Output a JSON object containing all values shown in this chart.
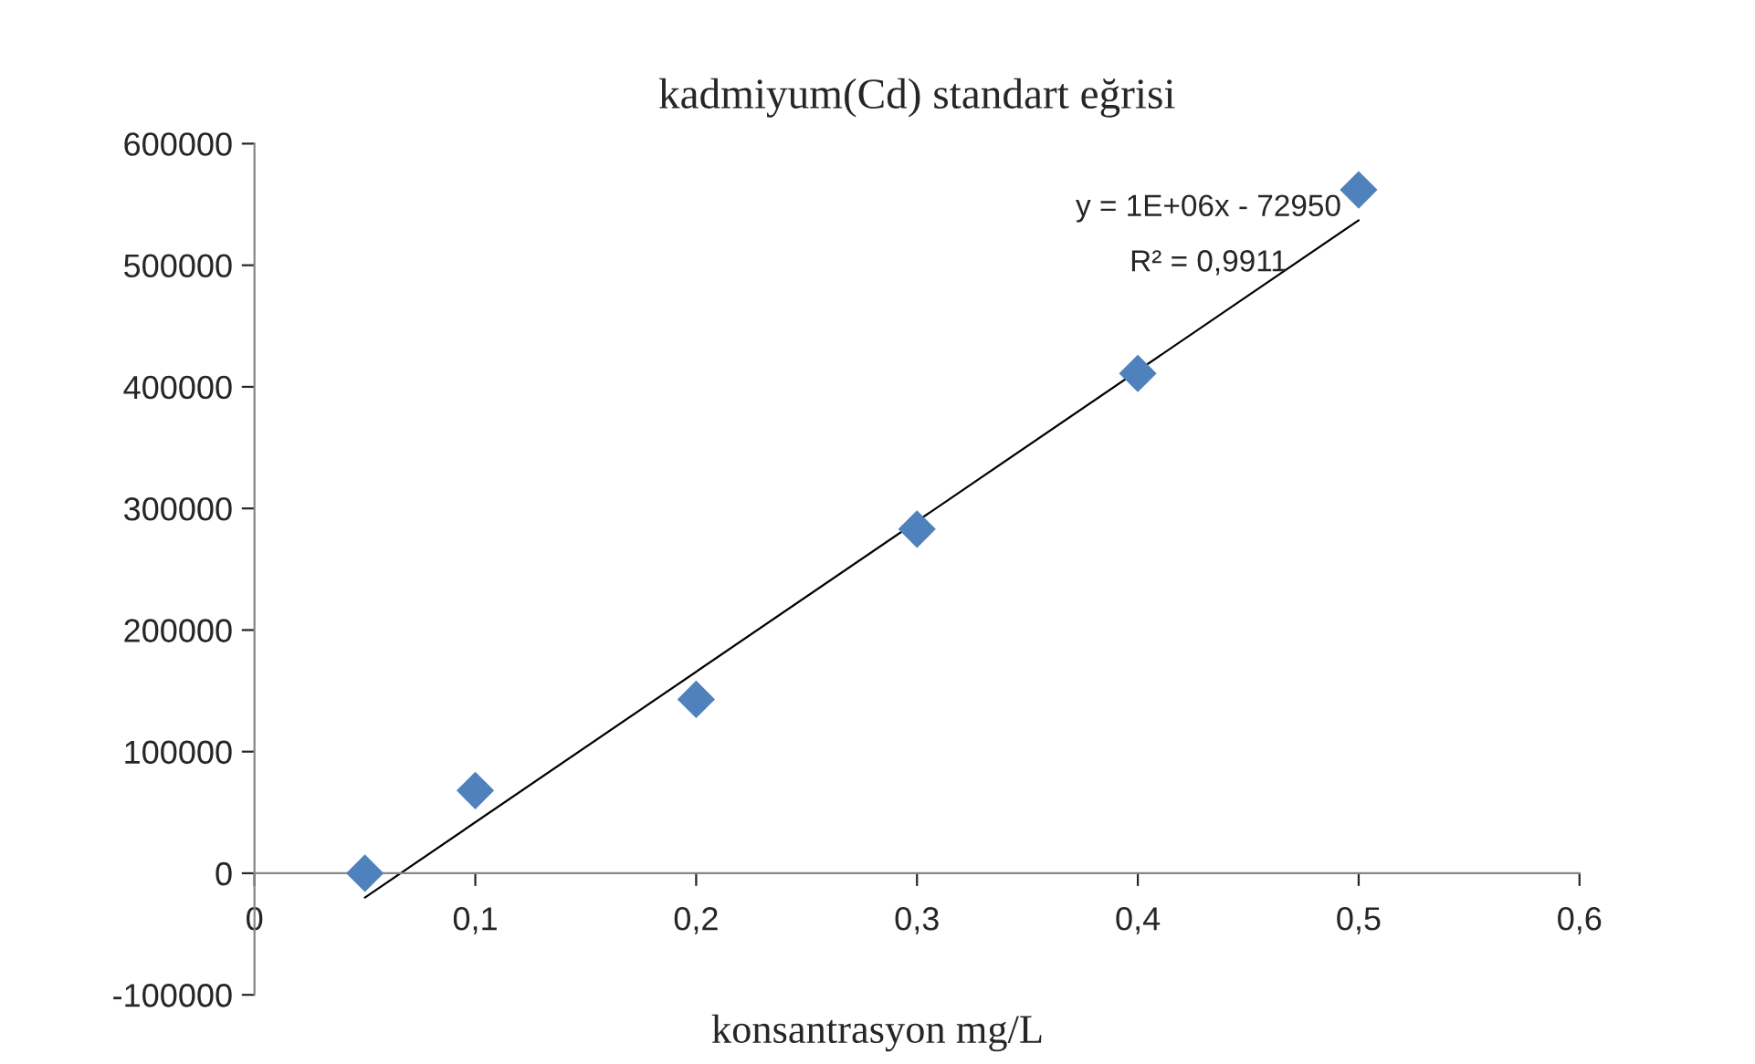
{
  "chart_data": {
    "type": "scatter",
    "title": "kadmiyum(Cd) standart eğrisi",
    "xlabel": "konsantrasyon mg/L",
    "x": [
      0.05,
      0.1,
      0.2,
      0.3,
      0.4,
      0.5
    ],
    "series": [
      {
        "color": "#4f81bd",
        "marker": "diamond",
        "values": [
          0,
          68000,
          143000,
          283000,
          411000,
          562000
        ]
      },
      {
        "type": "line",
        "color": "#000000",
        "marker": "none",
        "line_style": "solid",
        "x": [
          0.05,
          0.5
        ],
        "values": [
          -20000,
          537000
        ]
      }
    ],
    "annotations": [
      "y = 1E+06x - 72950",
      "R² = 0,9911"
    ],
    "xlim": [
      0,
      0.6
    ],
    "xticks": [
      0,
      {
        "value": 0.1,
        "label": "0,1"
      },
      {
        "value": 0.2,
        "label": "0,2"
      },
      {
        "value": 0.3,
        "label": "0,3"
      },
      {
        "value": 0.4,
        "label": "0,4"
      },
      {
        "value": 0.5,
        "label": "0,5"
      },
      {
        "value": 0.6,
        "label": "0,6"
      }
    ],
    "ylim": [
      -100000,
      600000
    ],
    "yticks": [
      -100000,
      0,
      100000,
      200000,
      300000,
      400000,
      500000,
      600000
    ],
    "grid": false,
    "legend": false
  }
}
